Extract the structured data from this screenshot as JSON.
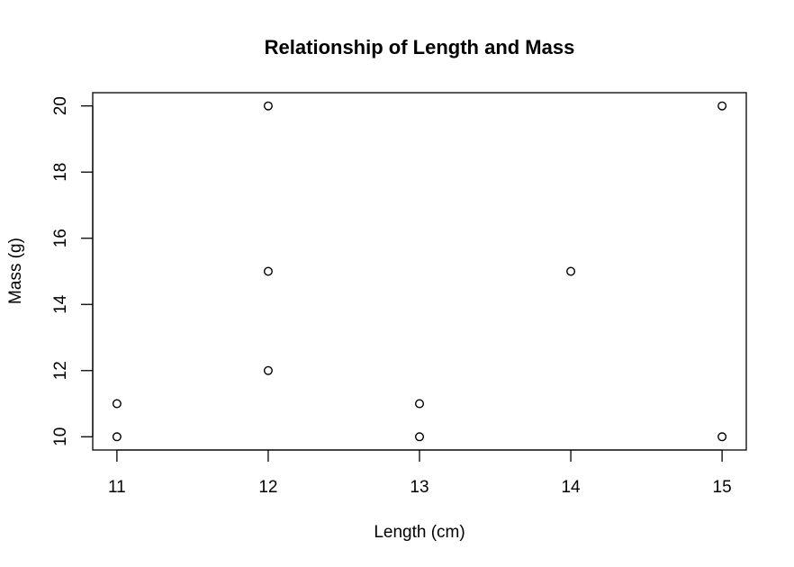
{
  "chart_data": {
    "type": "scatter",
    "title": "Relationship of Length and Mass",
    "xlabel": "Length (cm)",
    "ylabel": "Mass (g)",
    "x_ticks": [
      11,
      12,
      13,
      14,
      15
    ],
    "y_ticks": [
      10,
      12,
      14,
      16,
      18,
      20
    ],
    "xlim": [
      10.84,
      15.16
    ],
    "ylim": [
      9.6,
      20.4
    ],
    "grid": false,
    "legend": null,
    "marker": "open-circle",
    "points": [
      {
        "x": 11,
        "y": 10
      },
      {
        "x": 11,
        "y": 11
      },
      {
        "x": 12,
        "y": 12
      },
      {
        "x": 12,
        "y": 15
      },
      {
        "x": 12,
        "y": 20
      },
      {
        "x": 13,
        "y": 10
      },
      {
        "x": 13,
        "y": 11
      },
      {
        "x": 14,
        "y": 15
      },
      {
        "x": 15,
        "y": 10
      },
      {
        "x": 15,
        "y": 20
      }
    ]
  }
}
